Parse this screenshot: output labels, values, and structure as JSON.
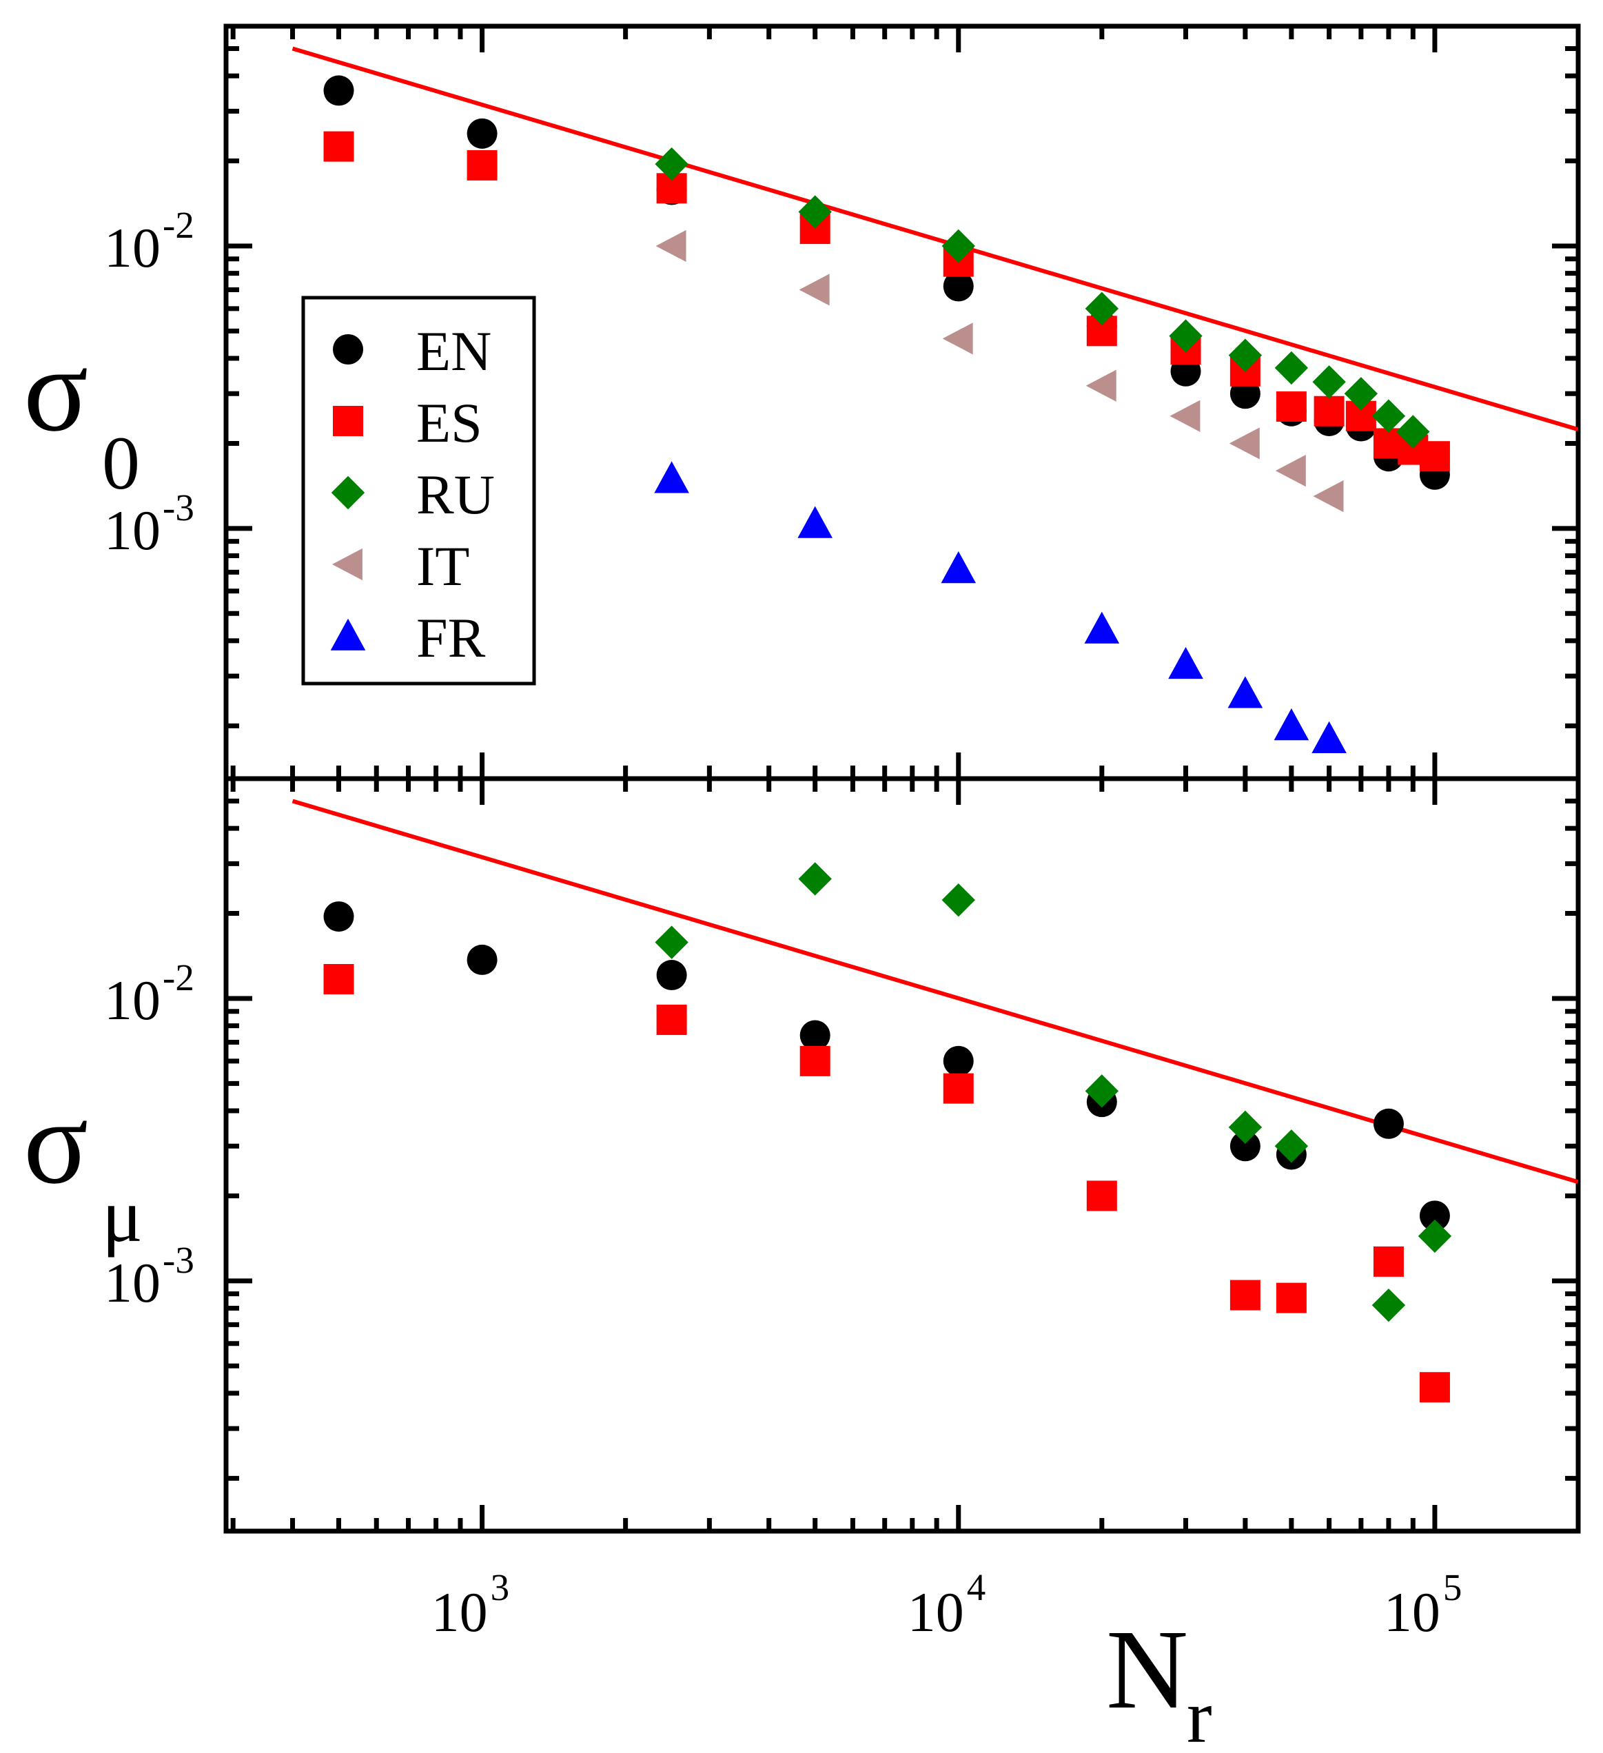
{
  "chart_data": [
    {
      "id": "top",
      "type": "scatter",
      "log_x": true,
      "log_y": true,
      "xlim": [
        290,
        200000
      ],
      "ylim": [
        0.00013,
        0.06
      ],
      "ylabel_main": "σ",
      "ylabel_sub": "0",
      "y_ticks": [
        {
          "base": "10",
          "exp": "-2",
          "value": 0.01
        },
        {
          "base": "10",
          "exp": "-3",
          "value": 0.001
        }
      ],
      "fit_line": {
        "color": "#ff0000",
        "points": [
          [
            400,
            0.05
          ],
          [
            200000,
            0.00224
          ]
        ]
      },
      "legend": {
        "position": "left-middle",
        "entries": [
          "EN",
          "ES",
          "RU",
          "IT",
          "FR"
        ]
      },
      "series": [
        {
          "name": "EN",
          "color": "#000000",
          "marker": "circle",
          "x": [
            500,
            1000,
            2500,
            5000,
            10000,
            20000,
            30000,
            40000,
            50000,
            60000,
            70000,
            80000,
            90000,
            100000
          ],
          "y": [
            0.0355,
            0.025,
            0.0158,
            0.0126,
            0.0072,
            0.0052,
            0.0036,
            0.003,
            0.0026,
            0.0024,
            0.0023,
            0.0018,
            0.002,
            0.00155
          ]
        },
        {
          "name": "ES",
          "color": "#ff0000",
          "marker": "square",
          "x": [
            500,
            1000,
            2500,
            5000,
            10000,
            20000,
            30000,
            40000,
            50000,
            60000,
            70000,
            80000,
            90000,
            100000
          ],
          "y": [
            0.0225,
            0.0193,
            0.016,
            0.0115,
            0.0088,
            0.005,
            0.0043,
            0.0036,
            0.0027,
            0.0026,
            0.0025,
            0.002,
            0.0019,
            0.0018
          ]
        },
        {
          "name": "RU",
          "color": "#008000",
          "marker": "diamond",
          "x": [
            2500,
            5000,
            10000,
            20000,
            30000,
            40000,
            50000,
            60000,
            70000,
            80000,
            90000
          ],
          "y": [
            0.0195,
            0.0132,
            0.01,
            0.006,
            0.0048,
            0.0041,
            0.0037,
            0.0033,
            0.003,
            0.0025,
            0.0022
          ]
        },
        {
          "name": "IT",
          "color": "#bc8f8f",
          "marker": "triangle-left",
          "x": [
            2500,
            5000,
            10000,
            20000,
            30000,
            40000,
            50000,
            60000
          ],
          "y": [
            0.01,
            0.007,
            0.0047,
            0.0032,
            0.0025,
            0.002,
            0.0016,
            0.0013
          ]
        },
        {
          "name": "FR",
          "color": "#0000ff",
          "marker": "triangle-up",
          "x": [
            2500,
            5000,
            10000,
            20000,
            30000,
            40000,
            50000,
            60000
          ],
          "y": [
            0.0015,
            0.00104,
            0.00072,
            0.00044,
            0.00033,
            0.00026,
            0.0002,
            0.00018
          ]
        }
      ]
    },
    {
      "id": "bottom",
      "type": "scatter",
      "log_x": true,
      "log_y": true,
      "xlim": [
        290,
        200000
      ],
      "ylim": [
        0.00013,
        0.06
      ],
      "xlabel_main": "N",
      "xlabel_sub": "r",
      "ylabel_main": "σ",
      "ylabel_sub": "μ",
      "x_ticks": [
        {
          "base": "10",
          "exp": "3",
          "value": 1000
        },
        {
          "base": "10",
          "exp": "4",
          "value": 10000
        },
        {
          "base": "10",
          "exp": "5",
          "value": 100000
        }
      ],
      "y_ticks": [
        {
          "base": "10",
          "exp": "-2",
          "value": 0.01
        },
        {
          "base": "10",
          "exp": "-3",
          "value": 0.001
        }
      ],
      "fit_line": {
        "color": "#ff0000",
        "points": [
          [
            400,
            0.05
          ],
          [
            200000,
            0.00224
          ]
        ]
      },
      "series": [
        {
          "name": "EN",
          "color": "#000000",
          "marker": "circle",
          "x": [
            500,
            1000,
            2500,
            5000,
            10000,
            20000,
            40000,
            50000,
            80000,
            100000
          ],
          "y": [
            0.0195,
            0.0137,
            0.0121,
            0.0074,
            0.006,
            0.0043,
            0.003,
            0.0028,
            0.0036,
            0.0017
          ]
        },
        {
          "name": "ES",
          "color": "#ff0000",
          "marker": "square",
          "x": [
            500,
            2500,
            5000,
            10000,
            20000,
            40000,
            50000,
            80000,
            100000
          ],
          "y": [
            0.0117,
            0.0084,
            0.006,
            0.0048,
            0.002,
            0.00089,
            0.00087,
            0.00117,
            0.00042
          ]
        },
        {
          "name": "RU",
          "color": "#008000",
          "marker": "diamond",
          "x": [
            2500,
            5000,
            10000,
            20000,
            40000,
            50000,
            80000,
            100000
          ],
          "y": [
            0.0158,
            0.0265,
            0.0223,
            0.0047,
            0.0035,
            0.003,
            0.00082,
            0.00144
          ]
        }
      ]
    }
  ]
}
